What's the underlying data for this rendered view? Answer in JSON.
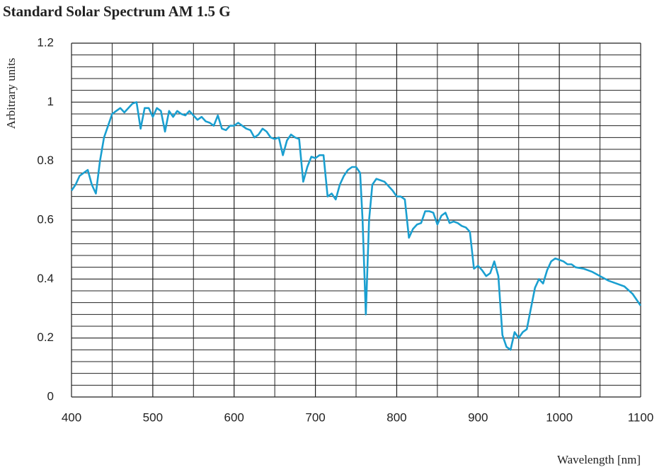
{
  "chart_data": {
    "type": "line",
    "title": "Standard Solar Spectrum AM 1.5 G",
    "x_label": "Wavelength [nm]",
    "y_label": "Arbitrary units",
    "xlim": [
      400,
      1100
    ],
    "xticks": [
      400,
      500,
      600,
      700,
      800,
      900,
      1000,
      1100
    ],
    "ylim": [
      0,
      1.2
    ],
    "yticks": [
      0,
      0.2,
      0.4,
      0.6,
      0.8,
      1,
      1.2
    ],
    "grid": true,
    "xgrid_divisions": 2,
    "ygrid_divisions": 5,
    "x": [
      400,
      405,
      410,
      415,
      420,
      425,
      430,
      435,
      440,
      445,
      450,
      455,
      460,
      465,
      470,
      475,
      480,
      485,
      490,
      495,
      500,
      505,
      510,
      515,
      520,
      525,
      530,
      535,
      540,
      545,
      550,
      555,
      560,
      565,
      570,
      575,
      580,
      585,
      590,
      595,
      600,
      605,
      610,
      615,
      620,
      625,
      630,
      635,
      640,
      645,
      650,
      655,
      660,
      665,
      670,
      675,
      680,
      685,
      690,
      695,
      700,
      705,
      710,
      715,
      720,
      725,
      730,
      735,
      740,
      745,
      750,
      755,
      758,
      762,
      766,
      770,
      775,
      780,
      785,
      790,
      795,
      800,
      805,
      810,
      815,
      820,
      825,
      830,
      835,
      840,
      845,
      850,
      855,
      860,
      865,
      870,
      875,
      880,
      885,
      890,
      895,
      900,
      905,
      910,
      915,
      920,
      925,
      930,
      935,
      940,
      945,
      950,
      955,
      960,
      965,
      970,
      975,
      980,
      985,
      990,
      995,
      1000,
      1005,
      1010,
      1015,
      1020,
      1030,
      1040,
      1050,
      1060,
      1070,
      1080,
      1090,
      1100
    ],
    "series": [
      {
        "name": "AM 1.5 G",
        "color": "#1a9fd0",
        "values": [
          0.7,
          0.72,
          0.75,
          0.76,
          0.77,
          0.72,
          0.69,
          0.8,
          0.88,
          0.92,
          0.96,
          0.97,
          0.98,
          0.965,
          0.98,
          0.995,
          1.0,
          0.91,
          0.98,
          0.98,
          0.95,
          0.98,
          0.97,
          0.9,
          0.97,
          0.95,
          0.97,
          0.96,
          0.955,
          0.97,
          0.955,
          0.94,
          0.95,
          0.935,
          0.93,
          0.92,
          0.955,
          0.91,
          0.905,
          0.92,
          0.92,
          0.93,
          0.92,
          0.91,
          0.905,
          0.88,
          0.89,
          0.91,
          0.9,
          0.88,
          0.875,
          0.88,
          0.82,
          0.87,
          0.89,
          0.88,
          0.875,
          0.73,
          0.78,
          0.815,
          0.81,
          0.82,
          0.82,
          0.68,
          0.69,
          0.67,
          0.72,
          0.75,
          0.77,
          0.78,
          0.78,
          0.76,
          0.6,
          0.28,
          0.6,
          0.72,
          0.74,
          0.735,
          0.73,
          0.715,
          0.7,
          0.68,
          0.68,
          0.67,
          0.54,
          0.57,
          0.585,
          0.59,
          0.63,
          0.63,
          0.625,
          0.585,
          0.615,
          0.625,
          0.59,
          0.595,
          0.59,
          0.58,
          0.575,
          0.56,
          0.435,
          0.445,
          0.43,
          0.41,
          0.42,
          0.46,
          0.41,
          0.21,
          0.17,
          0.16,
          0.22,
          0.2,
          0.22,
          0.23,
          0.3,
          0.37,
          0.4,
          0.385,
          0.43,
          0.46,
          0.47,
          0.465,
          0.46,
          0.45,
          0.45,
          0.44,
          0.435,
          0.425,
          0.41,
          0.395,
          0.385,
          0.375,
          0.35,
          0.31
        ]
      }
    ]
  }
}
